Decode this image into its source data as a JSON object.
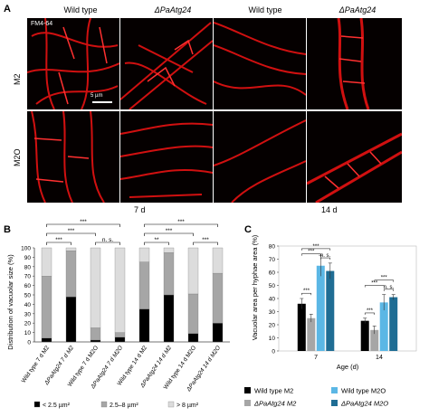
{
  "panel_a": {
    "letter": "A",
    "columns": [
      "Wild type",
      "ΔPaAtg24",
      "Wild type",
      "ΔPaAtg24"
    ],
    "stain": "FM4-64",
    "rows": [
      "M2",
      "M2O"
    ],
    "scale_bar": "5 µm",
    "days": [
      "7 d",
      "14 d"
    ]
  },
  "panel_b": {
    "letter": "B",
    "ylabel": "Distribution of vacuolar size (%)",
    "legend": [
      "< 2.5 µm²",
      "2.5–8 µm²",
      "> 8 µm²"
    ],
    "significance": [
      "***",
      "***",
      "***",
      "n. s.",
      "**",
      "***",
      "***",
      "***"
    ]
  },
  "panel_c": {
    "letter": "C",
    "ylabel": "Vacuolar area per hyphae area (%)",
    "xlabel": "Age (d)",
    "legend": [
      "Wild type M2",
      "ΔPaAtg24 M2",
      "Wild type M2O",
      "ΔPaAtg24 M2O"
    ],
    "significance": [
      "***",
      "***",
      "***",
      "n. s.",
      "***",
      "***",
      "***",
      "n. s."
    ]
  },
  "chart_data": [
    {
      "type": "bar",
      "stacked": true,
      "categories": [
        "Wild type 7 d M2",
        "ΔPaAtg24 7 d M2",
        "Wild type 7 d M2O",
        "ΔPaAtg24 7 d M2O",
        "Wild type 14 d M2",
        "ΔPaAtg24 14 d M2",
        "Wild type 14 d M2O",
        "ΔPaAtg24 14 d M2O"
      ],
      "series": [
        {
          "name": "< 2.5 µm²",
          "values": [
            4,
            48,
            2,
            5,
            35,
            50,
            9,
            20
          ],
          "color": "#000000"
        },
        {
          "name": "2.5–8 µm²",
          "values": [
            66,
            49,
            13,
            5,
            50,
            45,
            42,
            53
          ],
          "color": "#a6a6a6"
        },
        {
          "name": "> 8 µm²",
          "values": [
            30,
            3,
            85,
            90,
            15,
            5,
            49,
            27
          ],
          "color": "#dcdcdc"
        }
      ],
      "ylabel": "Distribution of vacuolar size (%)",
      "ylim": [
        0,
        100
      ],
      "yticks": [
        0,
        10,
        20,
        30,
        40,
        50,
        60,
        70,
        80,
        90,
        100
      ],
      "legend_position": "bottom"
    },
    {
      "type": "bar",
      "categories": [
        "7",
        "14"
      ],
      "series": [
        {
          "name": "Wild type M2",
          "values": [
            36,
            23
          ],
          "errors": [
            4,
            2
          ],
          "color": "#000000"
        },
        {
          "name": "ΔPaAtg24 M2",
          "values": [
            25,
            16
          ],
          "errors": [
            3,
            3
          ],
          "color": "#a6a6a6"
        },
        {
          "name": "Wild type M2O",
          "values": [
            65,
            37
          ],
          "errors": [
            8,
            6
          ],
          "color": "#5bb7e5"
        },
        {
          "name": "ΔPaAtg24 M2O",
          "values": [
            61,
            41
          ],
          "errors": [
            6,
            2
          ],
          "color": "#1f6d94"
        }
      ],
      "ylabel": "Vacuolar area per hyphae area (%)",
      "xlabel": "Age (d)",
      "ylim": [
        0,
        80
      ],
      "yticks": [
        0,
        10,
        20,
        30,
        40,
        50,
        60,
        70,
        80
      ],
      "legend_position": "bottom"
    }
  ]
}
